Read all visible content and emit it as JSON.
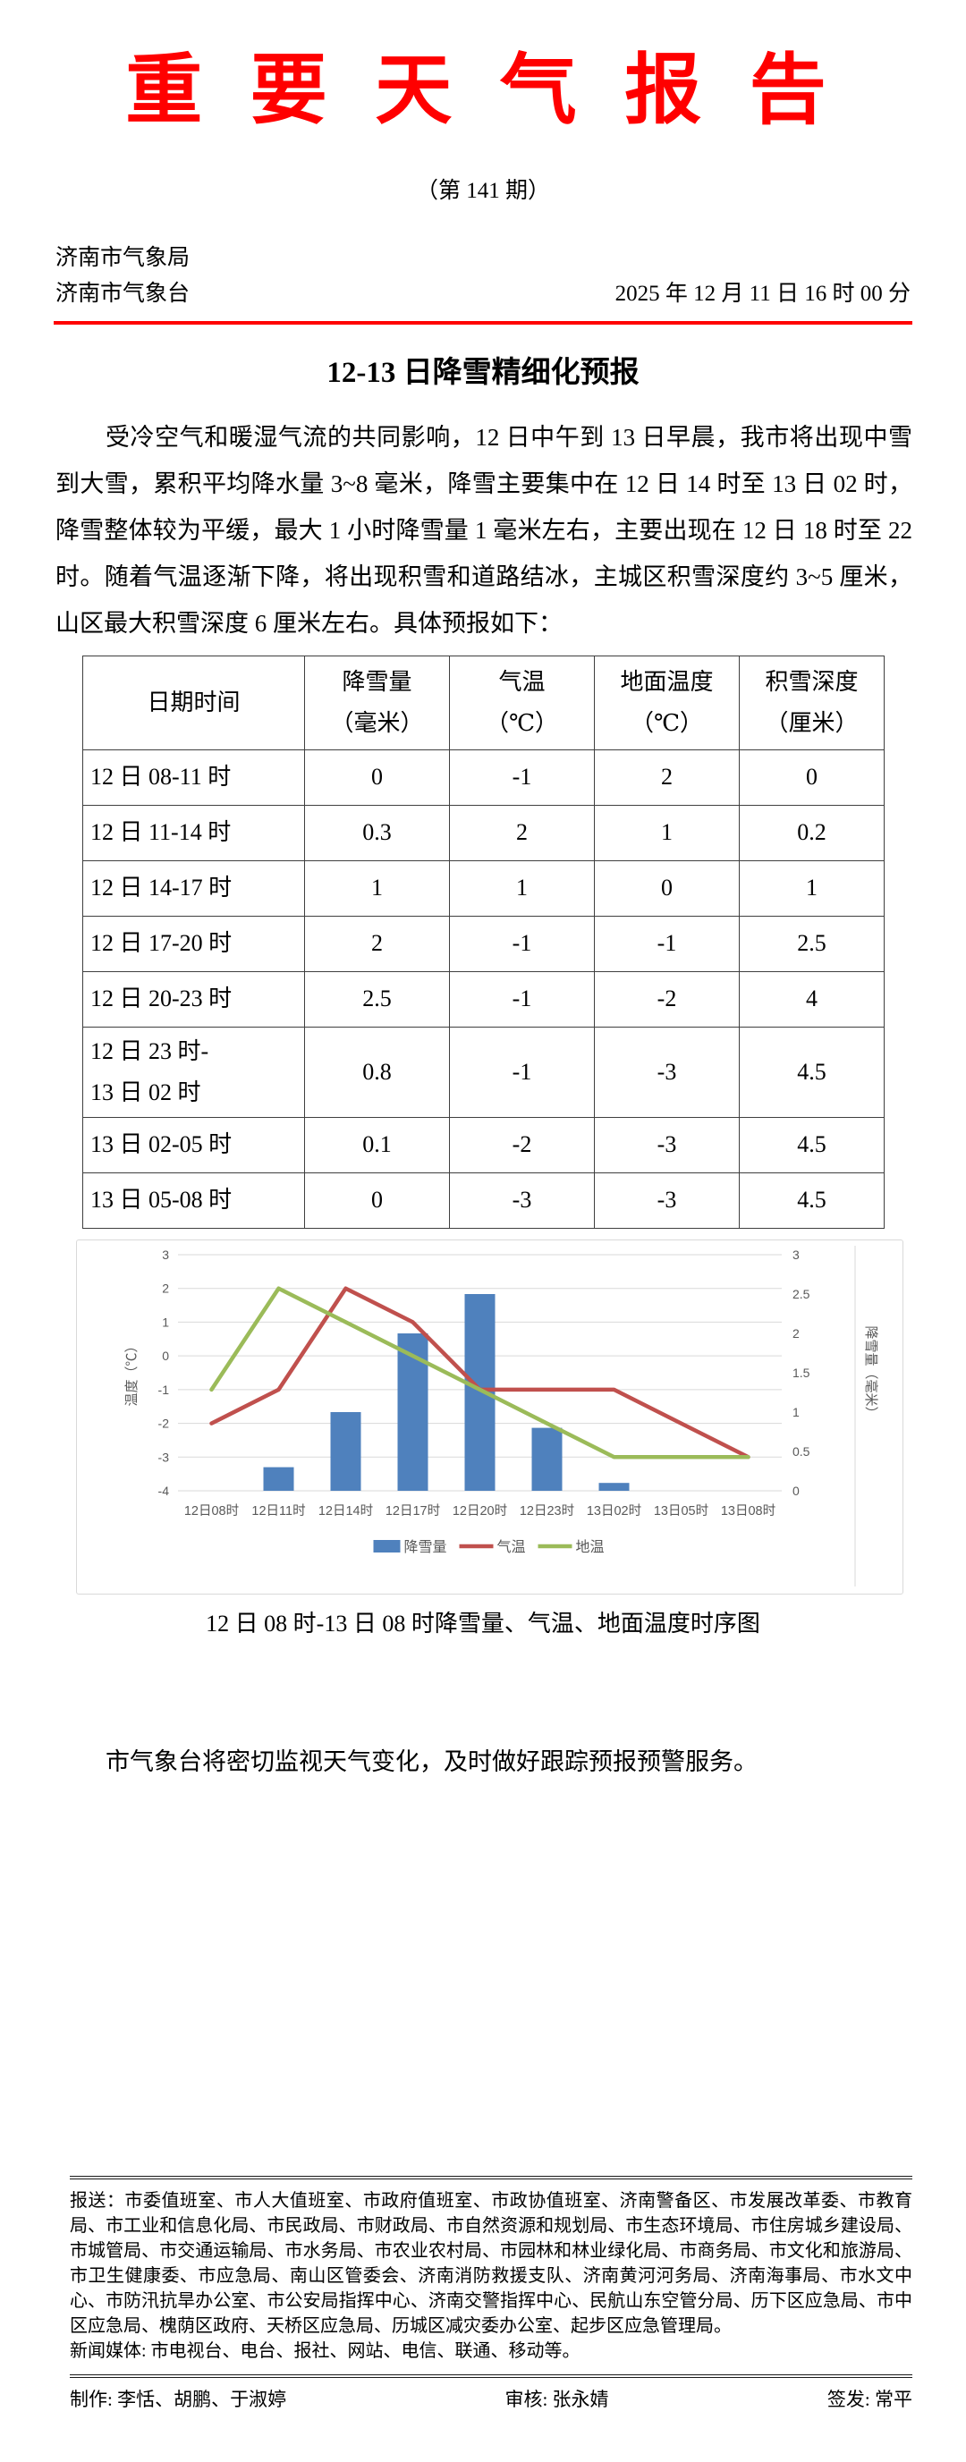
{
  "report": {
    "title": "重 要 天 气 报 告",
    "issue": "（第 141 期）",
    "bureau_line1": "济南市气象局",
    "bureau_line2": "济南市气象台",
    "datetime": "2025 年 12 月 11 日 16 时 00 分",
    "doc_title": "12-13 日降雪精细化预报",
    "paragraph": "受冷空气和暖湿气流的共同影响，12 日中午到 13 日早晨，我市将出现中雪到大雪，累积平均降水量 3~8 毫米，降雪主要集中在 12 日 14 时至 13 日 02 时，降雪整体较为平缓，最大 1 小时降雪量 1 毫米左右，主要出现在 12 日 18 时至 22 时。随着气温逐渐下降，将出现积雪和道路结冰，主城区积雪深度约 3~5 厘米，山区最大积雪深度 6 厘米左右。具体预报如下：",
    "chart_caption": "12 日 08 时-13 日 08 时降雪量、气温、地面温度时序图",
    "closing": "市气象台将密切监视天气变化，及时做好跟踪预报预警服务。"
  },
  "table": {
    "headers": [
      [
        "日期时间"
      ],
      [
        "降雪量",
        "（毫米）"
      ],
      [
        "气温",
        "（℃）"
      ],
      [
        "地面温度",
        "（℃）"
      ],
      [
        "积雪深度",
        "（厘米）"
      ]
    ],
    "rows": [
      [
        "12 日 08-11 时",
        "0",
        "-1",
        "2",
        "0"
      ],
      [
        "12 日 11-14 时",
        "0.3",
        "2",
        "1",
        "0.2"
      ],
      [
        "12 日 14-17 时",
        "1",
        "1",
        "0",
        "1"
      ],
      [
        "12 日 17-20 时",
        "2",
        "-1",
        "-1",
        "2.5"
      ],
      [
        "12 日 20-23 时",
        "2.5",
        "-1",
        "-2",
        "4"
      ],
      [
        "12 日 23 时-\n13 日 02 时",
        "0.8",
        "-1",
        "-3",
        "4.5"
      ],
      [
        "13 日 02-05 时",
        "0.1",
        "-2",
        "-3",
        "4.5"
      ],
      [
        "13 日 05-08 时",
        "0",
        "-3",
        "-3",
        "4.5"
      ]
    ]
  },
  "chart_data": {
    "type": "bar",
    "subtype": "combo bar+line, dual axis",
    "categories": [
      "12日08时",
      "12日11时",
      "12日14时",
      "12日17时",
      "12日20时",
      "12日23时",
      "13日02时",
      "13日05时",
      "13日08时"
    ],
    "series": [
      {
        "name": "降雪量",
        "type": "bar",
        "axis": "right",
        "color": "#4f81bd",
        "values": [
          0,
          0.3,
          1,
          2,
          2.5,
          0.8,
          0.1,
          0,
          0
        ]
      },
      {
        "name": "气温",
        "type": "line",
        "axis": "left",
        "color": "#c0504d",
        "values": [
          -2,
          -1,
          2,
          1,
          -1,
          -1,
          -1,
          -2,
          -3
        ]
      },
      {
        "name": "地温",
        "type": "line",
        "axis": "left",
        "color": "#9bbb59",
        "values": [
          -1,
          2,
          1,
          0,
          -1,
          -2,
          -3,
          -3,
          -3
        ]
      }
    ],
    "left_axis": {
      "label": "温度（℃）",
      "min": -4,
      "max": 3,
      "step": 1
    },
    "right_axis": {
      "label": "降雪量（毫米）",
      "min": 0,
      "max": 3,
      "step": 0.5
    },
    "legend_position": "bottom",
    "grid": true
  },
  "footer": {
    "distribution": "报送：市委值班室、市人大值班室、市政府值班室、市政协值班室、济南警备区、市发展改革委、市教育局、市工业和信息化局、市民政局、市财政局、市自然资源和规划局、市生态环境局、市住房城乡建设局、市城管局、市交通运输局、市水务局、市农业农村局、市园林和林业绿化局、市商务局、市文化和旅游局、市卫生健康委、市应急局、南山区管委会、济南消防救援支队、济南黄河河务局、济南海事局、市水文中心、市防汛抗旱办公室、市公安局指挥中心、济南交警指挥中心、民航山东空管分局、历下区应急局、市中区应急局、槐荫区政府、天桥区应急局、历城区减灾委办公室、起步区应急管理局。",
    "media": "新闻媒体: 市电视台、电台、报社、网站、电信、联通、移动等。",
    "produced_by": "制作: 李恬、胡鹏、于淑婷",
    "reviewed_by": "审核: 张永婧",
    "issued_by": "签发: 常平"
  },
  "colors": {
    "title_red": "#ff0000",
    "rule_red": "#ff0000",
    "bar_blue": "#4f81bd",
    "line_red": "#c0504d",
    "line_green": "#9bbb59",
    "gridline": "#d9d9d9",
    "chart_text": "#595959",
    "table_border": "#3f3f3f"
  }
}
